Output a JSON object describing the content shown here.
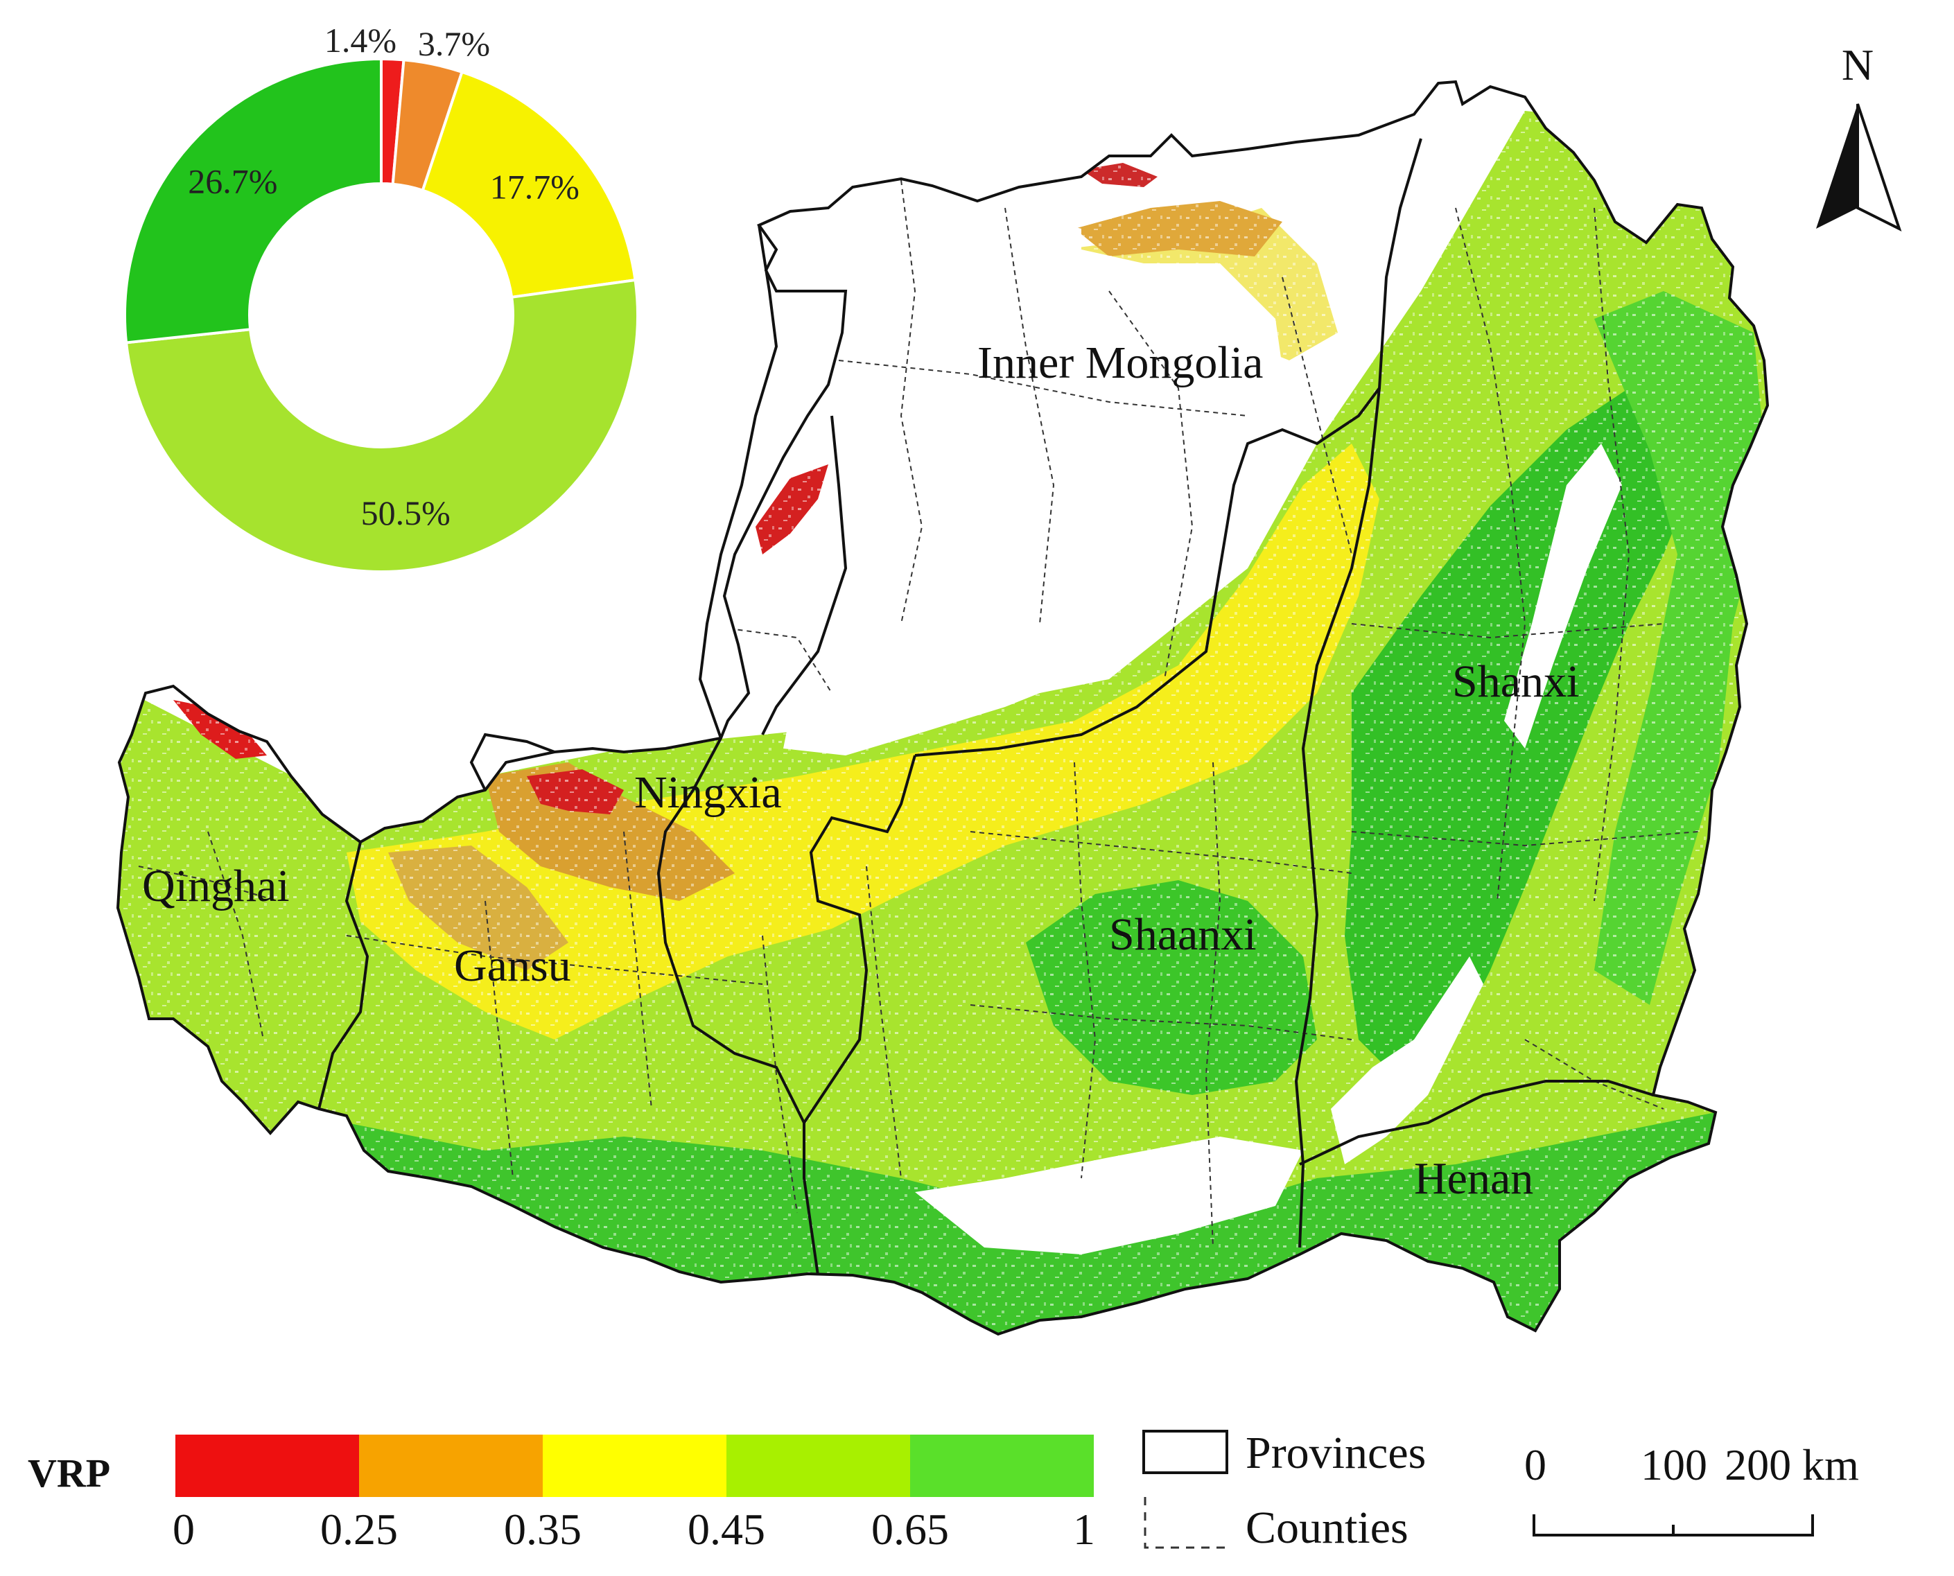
{
  "map": {
    "provinces": [
      {
        "label": "Inner Mongolia"
      },
      {
        "label": "Shanxi"
      },
      {
        "label": "Ningxia"
      },
      {
        "label": "Qinghai"
      },
      {
        "label": "Shaanxi"
      },
      {
        "label": "Gansu"
      },
      {
        "label": "Henan"
      }
    ],
    "north_arrow_label": "N"
  },
  "donut": {
    "segments": [
      {
        "percent": 1.4,
        "label": "1.4%",
        "color": "#ee1c1c"
      },
      {
        "percent": 3.7,
        "label": "3.7%",
        "color": "#ee8a2c"
      },
      {
        "percent": 17.7,
        "label": "17.7%",
        "color": "#f7f200"
      },
      {
        "percent": 50.5,
        "label": "50.5%",
        "color": "#a6e32e"
      },
      {
        "percent": 26.7,
        "label": "26.7%",
        "color": "#22c31c"
      }
    ]
  },
  "legend": {
    "title": "VRP",
    "classes": [
      {
        "color": "#ee1010"
      },
      {
        "color": "#f7a300"
      },
      {
        "color": "#ffff00"
      },
      {
        "color": "#a8f000"
      },
      {
        "color": "#5ae02a"
      }
    ],
    "breaks": [
      "0",
      "0.25",
      "0.35",
      "0.45",
      "0.65",
      "1"
    ],
    "provinces_label": "Provinces",
    "counties_label": "Counties"
  },
  "scale_bar": {
    "ticks": [
      "0",
      "100",
      "200 km"
    ]
  }
}
